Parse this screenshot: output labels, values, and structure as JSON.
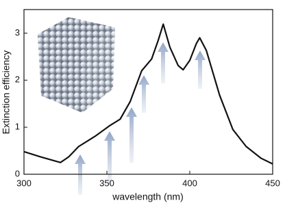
{
  "chart_data": {
    "type": "line",
    "x_label": "wavelength (nm)",
    "y_label": "Extinction efficiency",
    "x": [
      300,
      310,
      322,
      327,
      333,
      343,
      352,
      358,
      364,
      371,
      377,
      381,
      384,
      388,
      393,
      396,
      400,
      404,
      406,
      410,
      418,
      426,
      434,
      443,
      450
    ],
    "series": [
      {
        "color": "#111111",
        "values": [
          0.48,
          0.37,
          0.25,
          0.37,
          0.59,
          0.81,
          1.04,
          1.17,
          1.54,
          2.2,
          2.45,
          2.85,
          3.19,
          2.7,
          2.31,
          2.22,
          2.42,
          2.78,
          2.9,
          2.63,
          1.68,
          0.95,
          0.59,
          0.34,
          0.22
        ]
      }
    ],
    "xlim": [
      300,
      450
    ],
    "ylim": [
      0,
      3.5
    ],
    "xticks": [
      300,
      350,
      400,
      450
    ],
    "yticks": [
      0,
      1,
      2,
      3
    ]
  }
}
